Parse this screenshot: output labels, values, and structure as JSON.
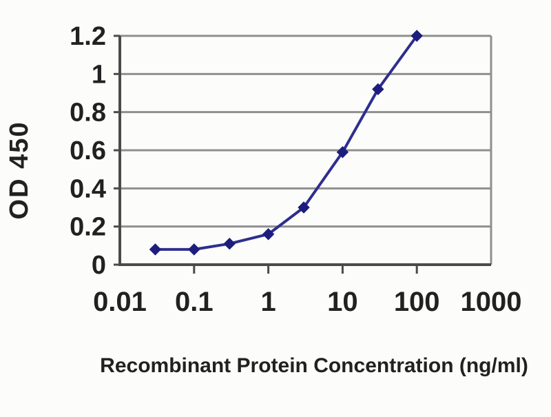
{
  "chart_data": {
    "type": "line",
    "xlabel": "Recombinant Protein Concentration (ng/ml)",
    "ylabel": "OD 450",
    "x_scale": "log",
    "xlim": [
      0.01,
      1000
    ],
    "ylim": [
      0,
      1.2
    ],
    "x": [
      0.03,
      0.1,
      0.3,
      1,
      3,
      10,
      30,
      100
    ],
    "y": [
      0.08,
      0.08,
      0.11,
      0.16,
      0.3,
      0.59,
      0.92,
      1.2
    ],
    "x_tick_values": [
      0.01,
      0.1,
      1,
      10,
      100,
      1000
    ],
    "x_tick_labels": [
      "0.01",
      "0.1",
      "1",
      "10",
      "100",
      "1000"
    ],
    "x_ticks_with_mark": [
      0.1,
      1,
      10,
      100
    ],
    "y_tick_values": [
      0,
      0.2,
      0.4,
      0.6,
      0.8,
      1,
      1.2
    ],
    "y_tick_labels": [
      "0",
      "0.2",
      "0.4",
      "0.6",
      "0.8",
      "1",
      "1.2"
    ],
    "grid": true,
    "legend": "none",
    "marker": "diamond",
    "colors": {
      "line": "#2e2e8f",
      "marker": "#1d1d7e",
      "grid": "#8f8f8f",
      "axis": "#4a4a4a",
      "text": "#212121",
      "background": "#fcfcfa"
    }
  }
}
